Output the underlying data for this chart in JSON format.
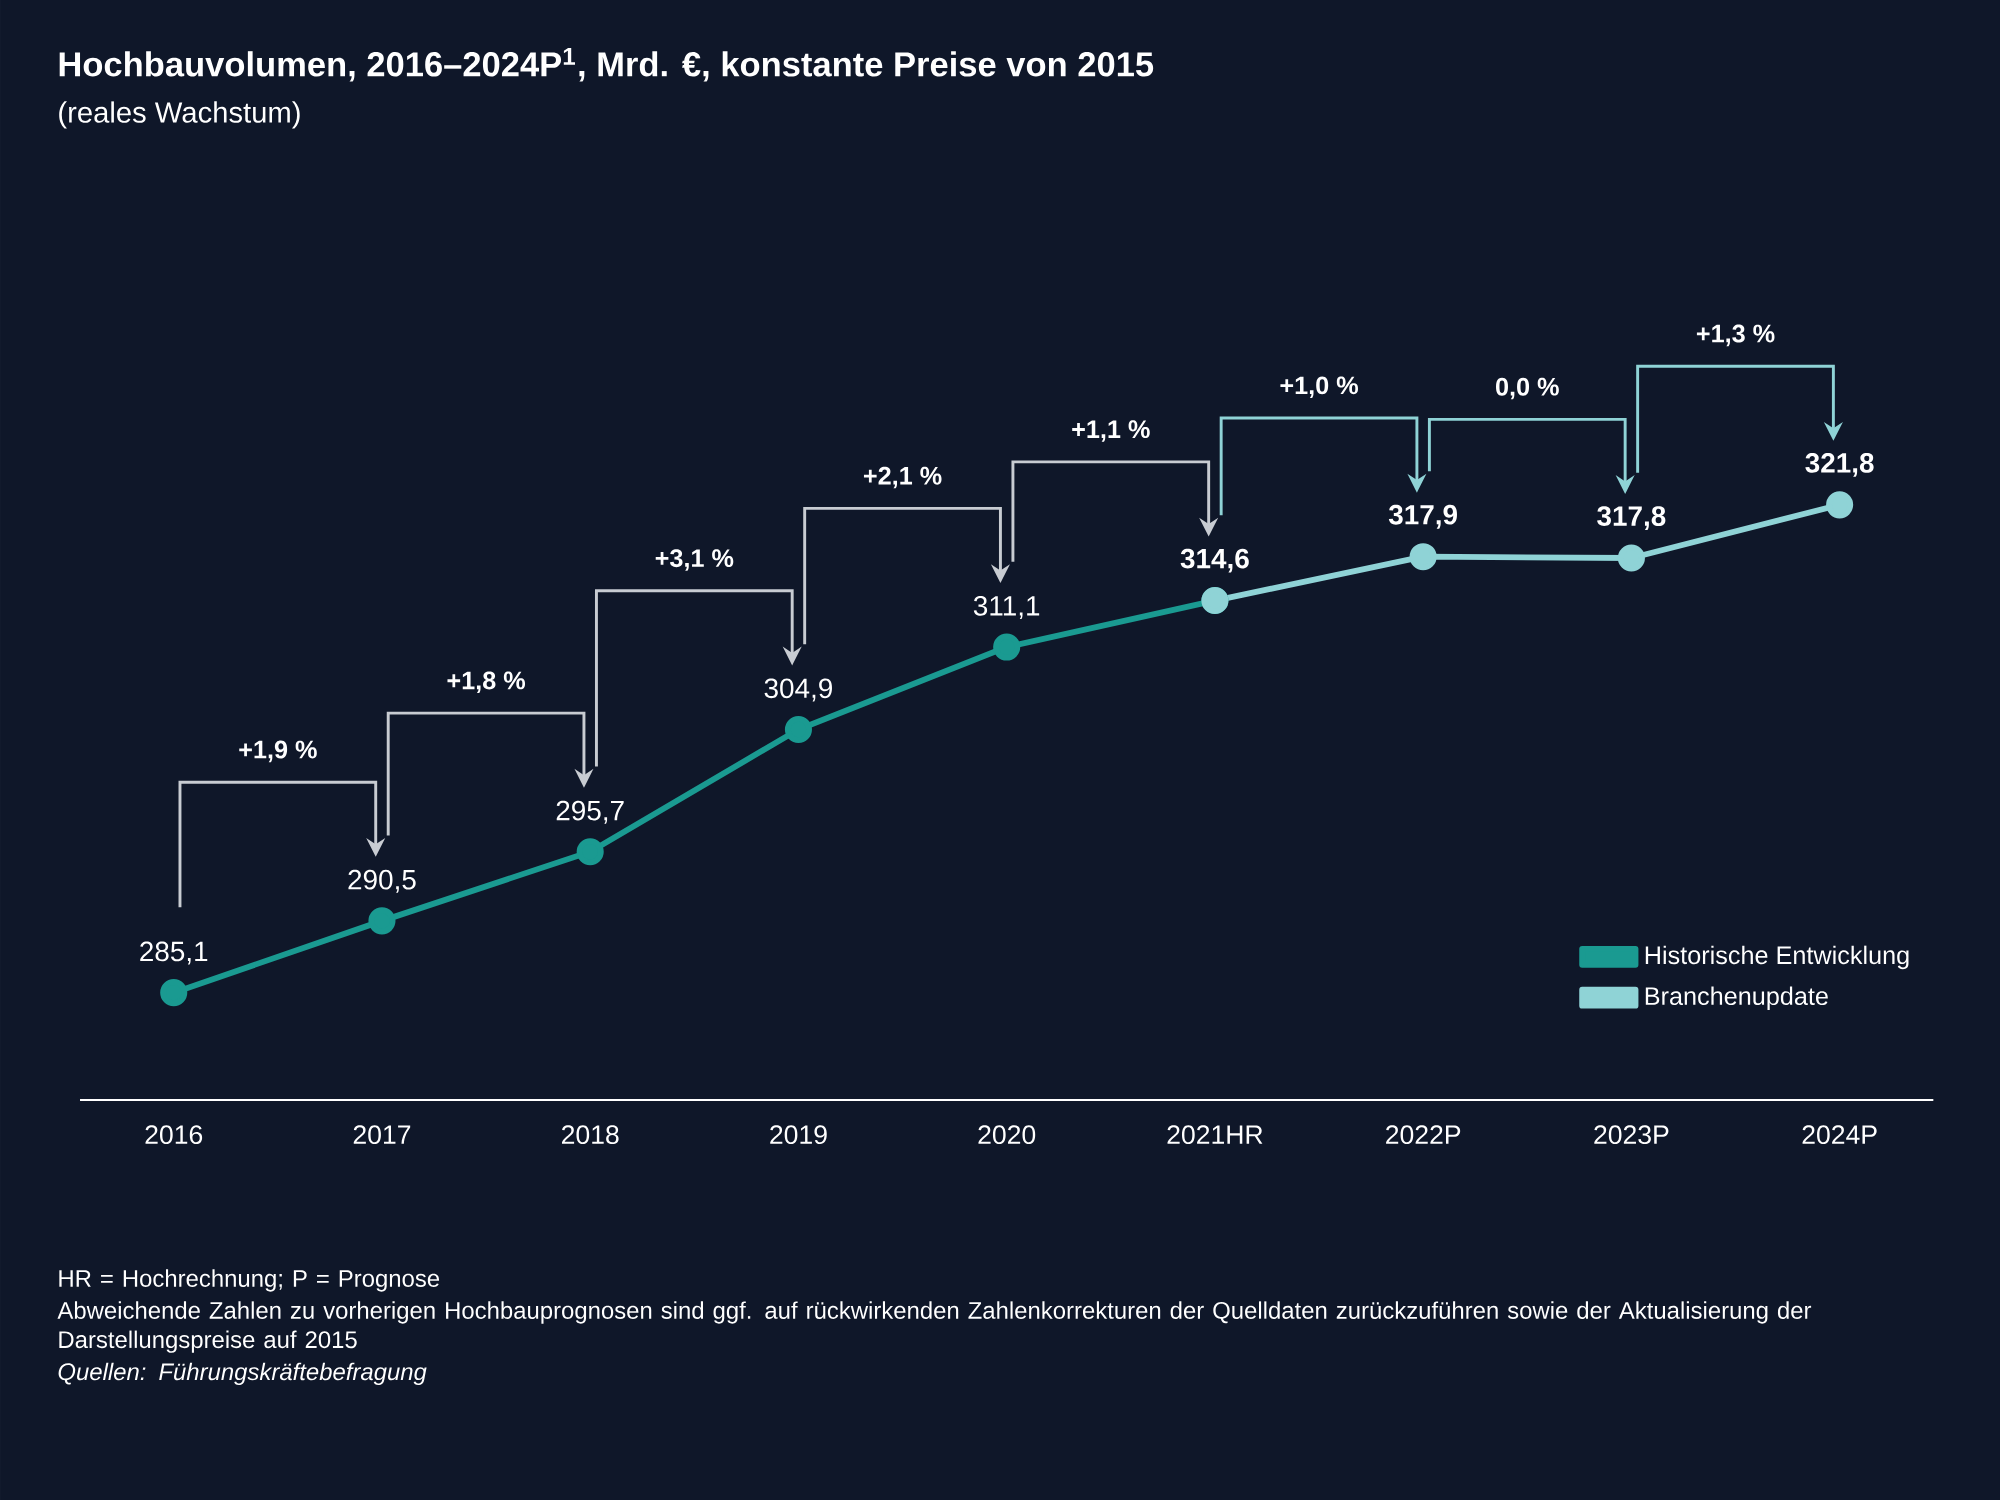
{
  "chart_data": {
    "type": "line",
    "title": "Hochbauvolumen, 2016–2024P$^{1}$, Mrd. €, konstante Preise von 2015",
    "subtitle": "(reales Wachstum)",
    "categories": [
      "2016",
      "2017",
      "2018",
      "2019",
      "2020",
      "2021HR",
      "2022P",
      "2023P",
      "2024P"
    ],
    "series": [
      {
        "name": "Historische Entwicklung",
        "color": "#1a9a91",
        "values": [
          285.1,
          290.5,
          295.7,
          304.9,
          311.1,
          314.6,
          null,
          null,
          null
        ],
        "value_labels": [
          "285,1",
          "290,5",
          "295,7",
          "304,9",
          "311,1",
          null,
          null,
          null,
          null
        ]
      },
      {
        "name": "Branchenupdate",
        "color": "#8fd3d6",
        "values": [
          null,
          null,
          null,
          null,
          null,
          314.6,
          317.9,
          317.8,
          321.8
        ],
        "value_labels": [
          null,
          null,
          null,
          null,
          null,
          "314,6",
          "317,9",
          "317,8",
          "321,8"
        ]
      }
    ],
    "marker": "circle",
    "line_style": "solid",
    "legend": "bottom right",
    "annotations": [
      "+1,9 %",
      "+1,8 %",
      "+3,1 %",
      "+2,1 %",
      "+1,1 %",
      "+1,0 %",
      "0,0 %",
      "+1,3 %",
      "HR = Hochrechnung; P = Prognose",
      "Abweichende Zahlen zu vorherigen Hochbauprognosen sind ggf. auf rückwirkenden Zahlenkorrekturen der Quelldaten zurückzuführen sowie der Aktualisierung der Darstellungspreise auf 2015",
      "Quellen: Führungskräftebefragung"
    ]
  }
}
